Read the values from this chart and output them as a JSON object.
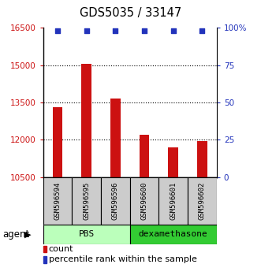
{
  "title": "GDS5035 / 33147",
  "samples": [
    "GSM596594",
    "GSM596595",
    "GSM596596",
    "GSM596600",
    "GSM596601",
    "GSM596602"
  ],
  "counts": [
    13300,
    15050,
    13650,
    12200,
    11700,
    11950
  ],
  "percentile_values": [
    98,
    98,
    98,
    98,
    98,
    98
  ],
  "ylim_left": [
    10500,
    16500
  ],
  "ylim_right": [
    0,
    100
  ],
  "yticks_left": [
    10500,
    12000,
    13500,
    15000,
    16500
  ],
  "yticks_right": [
    0,
    25,
    50,
    75,
    100
  ],
  "ytick_labels_left": [
    "10500",
    "12000",
    "13500",
    "15000",
    "16500"
  ],
  "ytick_labels_right": [
    "0",
    "25",
    "50",
    "75",
    "100%"
  ],
  "bar_color": "#cc1111",
  "dot_color": "#2233bb",
  "group_pbs_color": "#bbffbb",
  "group_dex_color": "#33cc33",
  "sample_box_color": "#cccccc",
  "agent_label": "agent",
  "legend_count_label": "count",
  "legend_pct_label": "percentile rank within the sample",
  "legend_count_color": "#cc1111",
  "legend_pct_color": "#2233bb"
}
